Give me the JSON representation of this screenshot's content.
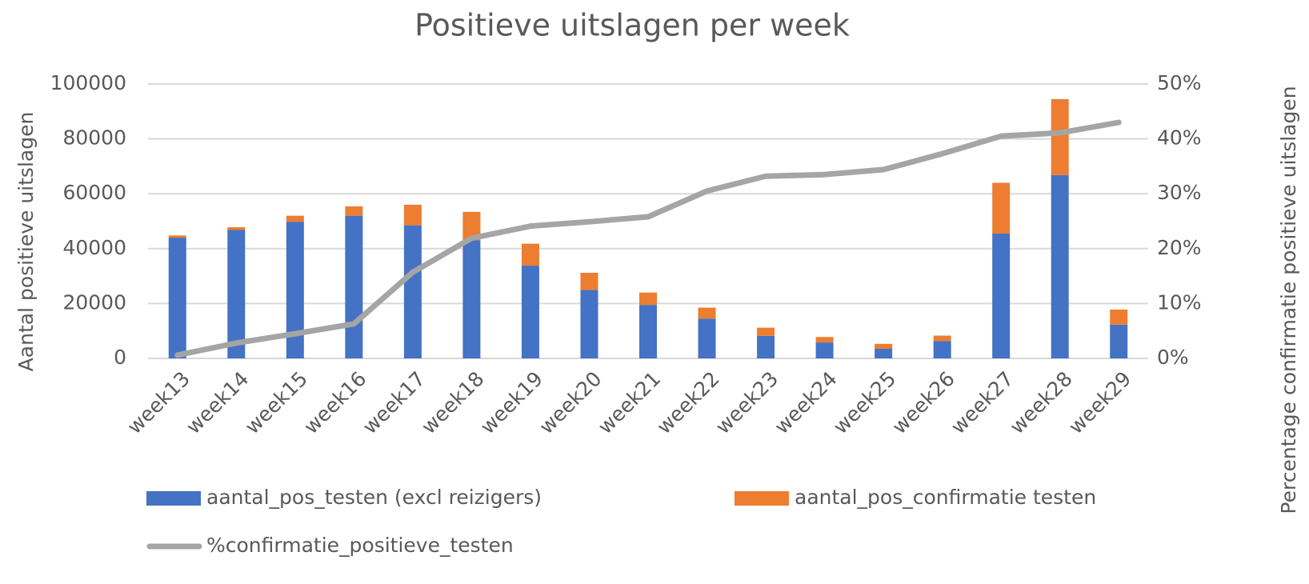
{
  "chart_data": {
    "type": "bar",
    "title": "Positieve uitslagen per week",
    "y_label": "Aantal positieve uitslagen",
    "y2_label": "Percentage confirmatie positieve uitslagen",
    "stacked": true,
    "categories": [
      "week13",
      "week14",
      "week15",
      "week16",
      "week17",
      "week18",
      "week19",
      "week20",
      "week21",
      "week22",
      "week23",
      "week24",
      "week25",
      "week26",
      "week27",
      "week28",
      "week29"
    ],
    "series": [
      {
        "name": "aantal_pos_testen (excl reizigers)",
        "type": "bar",
        "color": "#4472c4",
        "values": [
          44000,
          46800,
          49800,
          52000,
          48500,
          43000,
          33800,
          25000,
          19500,
          14500,
          8200,
          5800,
          3500,
          6300,
          45500,
          66800,
          12300
        ]
      },
      {
        "name": "aantal_pos_confirmatie testen",
        "type": "bar",
        "color": "#ed7d31",
        "values": [
          800,
          1000,
          2200,
          3400,
          7500,
          10400,
          8000,
          6200,
          4500,
          4000,
          3000,
          2000,
          1800,
          2000,
          18500,
          27700,
          5500
        ]
      },
      {
        "name": "%confirmatie_positieve_testen",
        "type": "line",
        "axis": "y2",
        "color": "#a5a5a5",
        "values": [
          0.6,
          2.8,
          4.5,
          6.3,
          15.7,
          21.9,
          24.1,
          24.9,
          25.8,
          30.5,
          33.2,
          33.5,
          34.4,
          37.3,
          40.5,
          41.1,
          43.0
        ]
      }
    ],
    "ylim": [
      0,
      100000
    ],
    "yticks": [
      0,
      20000,
      40000,
      60000,
      80000,
      100000
    ],
    "y2lim": [
      0,
      50
    ],
    "y2ticks": [
      {
        "value": 0,
        "label": "0%"
      },
      {
        "value": 10,
        "label": "10%"
      },
      {
        "value": 20,
        "label": "20%"
      },
      {
        "value": 30,
        "label": "30%"
      },
      {
        "value": 40,
        "label": "40%"
      },
      {
        "value": 50,
        "label": "50%"
      }
    ],
    "grid": true,
    "legend": "bottom"
  }
}
